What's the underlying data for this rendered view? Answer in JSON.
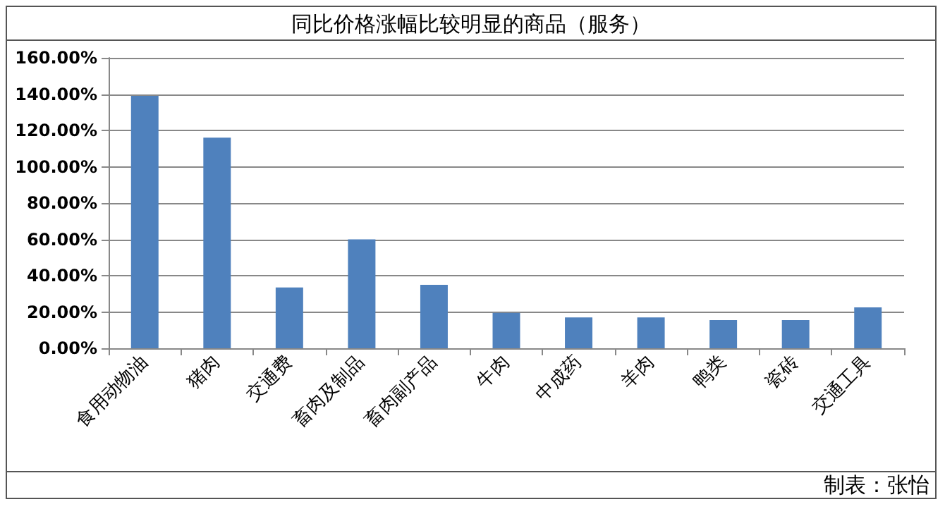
{
  "chart_data": {
    "type": "bar",
    "title": "同比价格涨幅比较明显的商品（服务）",
    "categories": [
      "食用动物油",
      "猪肉",
      "交通费",
      "畜肉及制品",
      "畜肉副产品",
      "牛肉",
      "中成药",
      "羊肉",
      "鸭类",
      "瓷砖",
      "交通工具"
    ],
    "values": [
      139,
      116,
      33.5,
      60,
      35,
      19.5,
      17,
      17,
      15.5,
      15.5,
      22.5
    ],
    "color": "#4f81bd",
    "ylim": [
      0,
      160
    ],
    "yticks": [
      {
        "value": 0,
        "label": "0.00%"
      },
      {
        "value": 20,
        "label": "20.00%"
      },
      {
        "value": 40,
        "label": "40.00%"
      },
      {
        "value": 60,
        "label": "60.00%"
      },
      {
        "value": 80,
        "label": "80.00%"
      },
      {
        "value": 100,
        "label": "100.00%"
      },
      {
        "value": 120,
        "label": "120.00%"
      },
      {
        "value": 140,
        "label": "140.00%"
      },
      {
        "value": 160,
        "label": "160.00%"
      }
    ],
    "grid": "y",
    "annotations": [
      "制表：张怡"
    ]
  }
}
